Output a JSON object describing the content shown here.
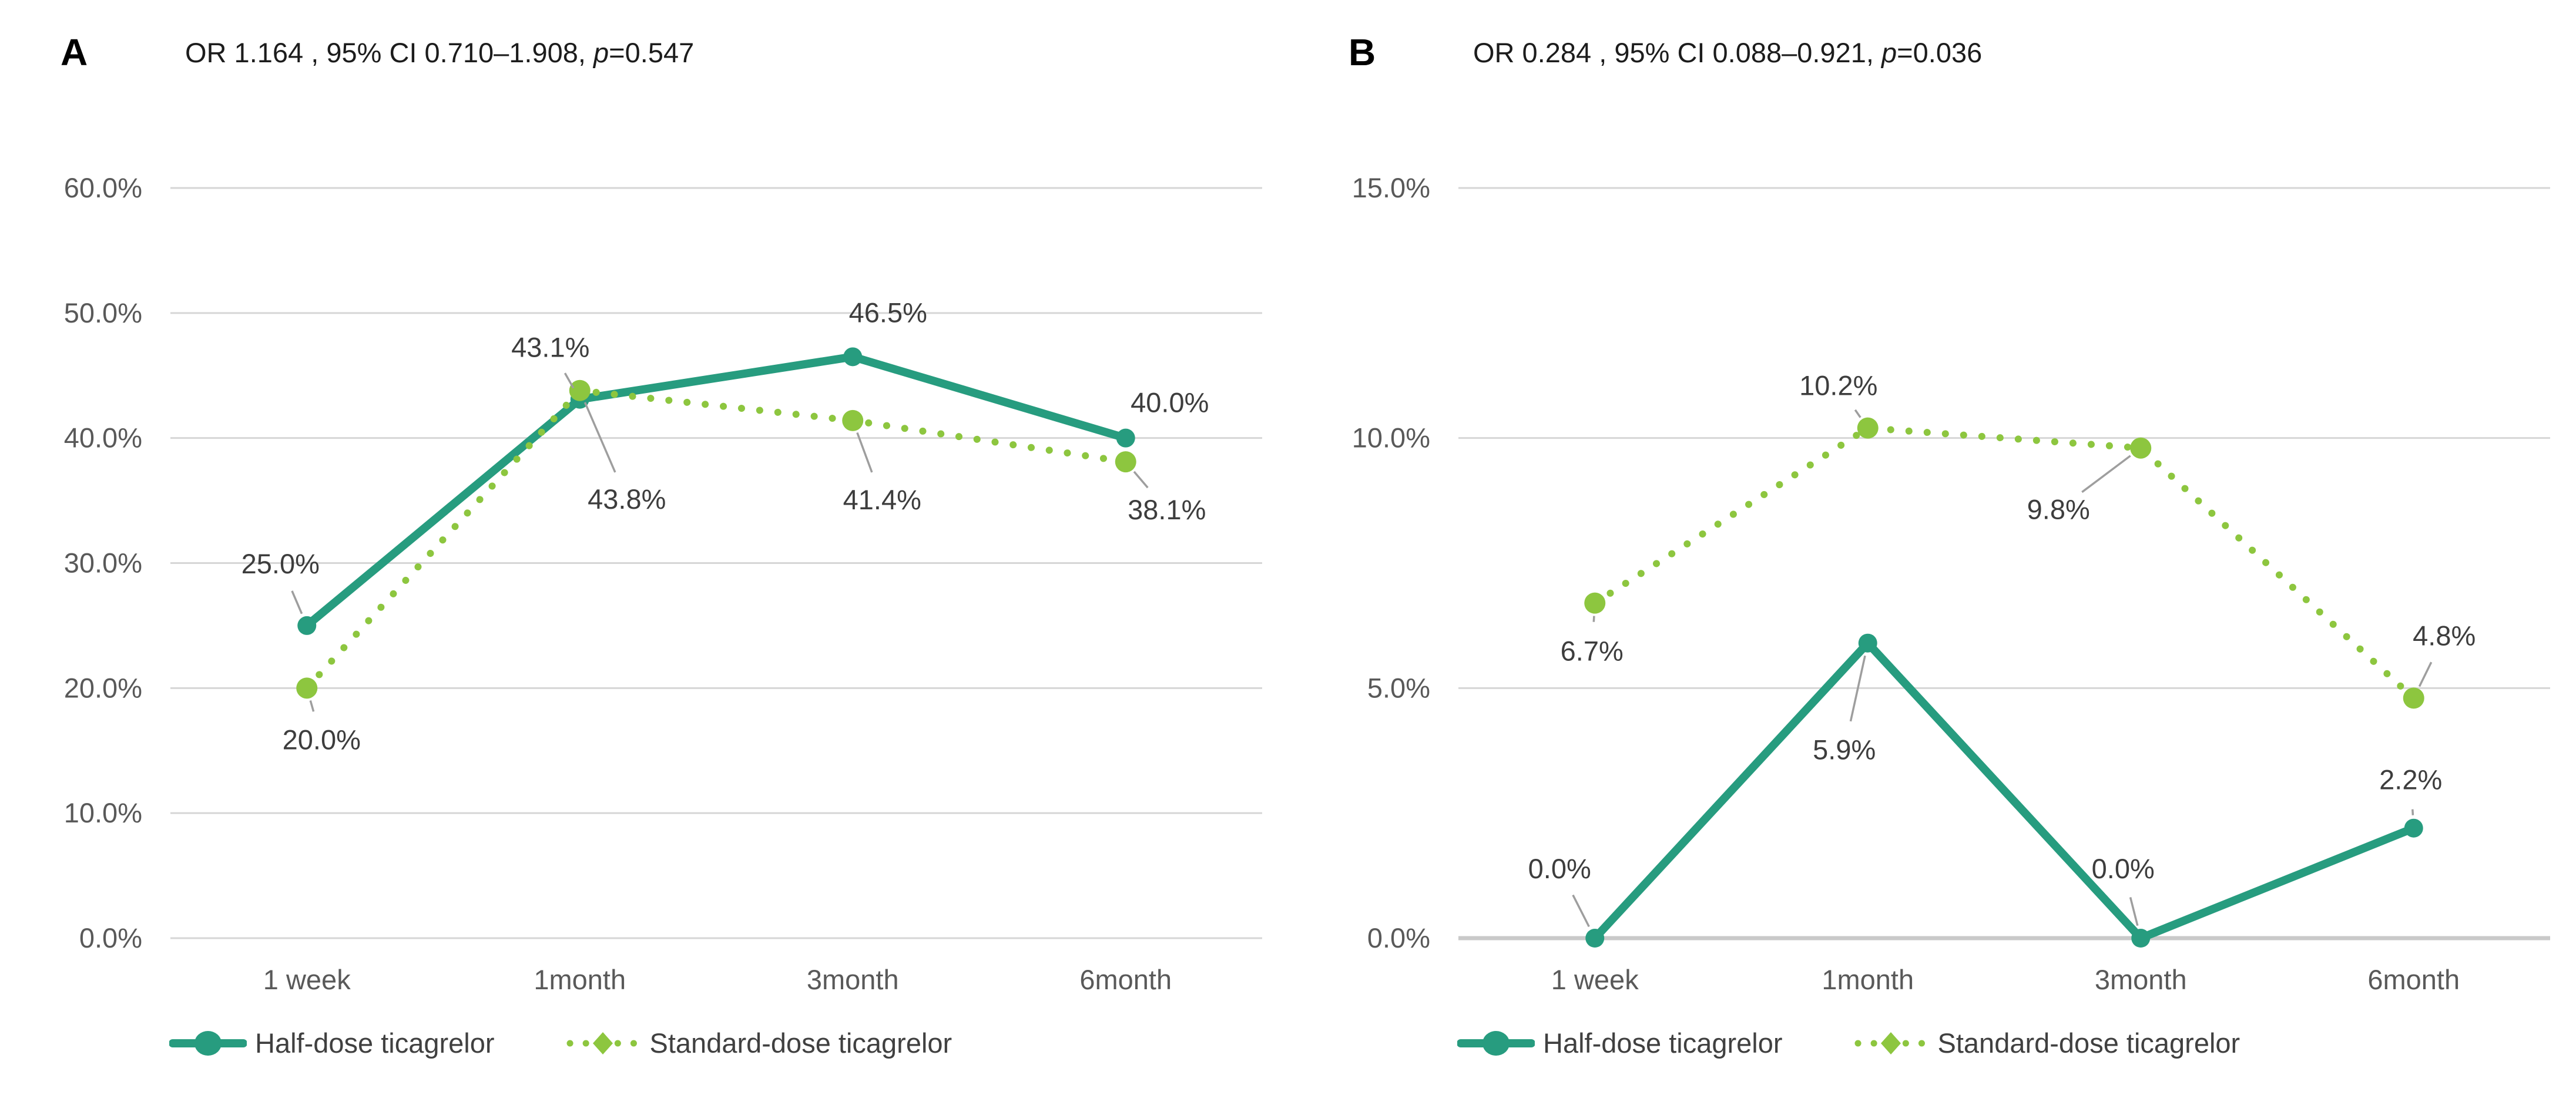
{
  "page": {
    "background": "#ffffff"
  },
  "colors": {
    "half_dose": "#279C7F",
    "standard_dose": "#8DC63F",
    "gridline": "#D6D6D6",
    "baseline": "#C9C9C9",
    "tick_label": "#595959",
    "data_label": "#3D3D3D",
    "leader_line": "#9E9E9E",
    "title_text": "#1C1C1C"
  },
  "chart_data": [
    {
      "type": "line",
      "panel_label": "A",
      "full_title": "OR 1.164 , 95% CI 0.710–1.908, p=0.547",
      "title_prefix": "OR 1.164 , 95% CI 0.710–1.908, ",
      "p_symbol": "p",
      "p_value": "=0.547",
      "categories": [
        "1 week",
        "1month",
        "3month",
        "6month"
      ],
      "ylim": [
        0,
        60
      ],
      "ytick_step": 10,
      "ytick_labels": [
        "0.0%",
        "10.0%",
        "20.0%",
        "30.0%",
        "40.0%",
        "50.0%",
        "60.0%"
      ],
      "grid": true,
      "legend_position": "bottom",
      "baseline_emphasis": false,
      "series": [
        {
          "name": "Half-dose ticagrelor",
          "color_key": "half_dose",
          "line_style": "solid",
          "values": [
            25.0,
            43.1,
            46.5,
            40.0
          ],
          "point_labels": [
            "25.0%",
            "43.1%",
            "46.5%",
            "40.0%"
          ],
          "label_offsets": [
            [
              -45,
              -105
            ],
            [
              -50,
              -88
            ],
            [
              60,
              -75
            ],
            [
              75,
              -60
            ]
          ],
          "label_leaders": [
            true,
            true,
            false,
            false
          ]
        },
        {
          "name": "Standard-dose ticagrelor",
          "color_key": "standard_dose",
          "line_style": "dotted",
          "values": [
            20.0,
            43.8,
            41.4,
            38.1
          ],
          "point_labels": [
            "20.0%",
            "43.8%",
            "41.4%",
            "38.1%"
          ],
          "label_offsets": [
            [
              25,
              88
            ],
            [
              80,
              185
            ],
            [
              50,
              135
            ],
            [
              70,
              82
            ]
          ],
          "label_leaders": [
            true,
            true,
            true,
            true
          ]
        }
      ]
    },
    {
      "type": "line",
      "panel_label": "B",
      "full_title": "OR 0.284 , 95% CI 0.088–0.921, p=0.036",
      "title_prefix": "OR 0.284 , 95% CI 0.088–0.921, ",
      "p_symbol": "p",
      "p_value": "=0.036",
      "categories": [
        "1 week",
        "1month",
        "3month",
        "6month"
      ],
      "ylim": [
        0,
        15
      ],
      "ytick_step": 5,
      "ytick_labels": [
        "0.0%",
        "5.0%",
        "10.0%",
        "15.0%"
      ],
      "grid": true,
      "legend_position": "bottom",
      "baseline_emphasis": true,
      "series": [
        {
          "name": "Half-dose ticagrelor",
          "color_key": "half_dose",
          "line_style": "solid",
          "values": [
            0.0,
            5.9,
            0.0,
            2.2
          ],
          "point_labels": [
            "0.0%",
            "5.9%",
            "0.0%",
            "2.2%"
          ],
          "label_offsets": [
            [
              -60,
              -118
            ],
            [
              -40,
              182
            ],
            [
              -30,
              -118
            ],
            [
              -5,
              -82
            ]
          ],
          "label_leaders": [
            true,
            true,
            true,
            true
          ]
        },
        {
          "name": "Standard-dose ticagrelor",
          "color_key": "standard_dose",
          "line_style": "dotted",
          "values": [
            6.7,
            10.2,
            9.8,
            4.8
          ],
          "point_labels": [
            "6.7%",
            "10.2%",
            "9.8%",
            "4.8%"
          ],
          "label_offsets": [
            [
              -5,
              82
            ],
            [
              -50,
              -72
            ],
            [
              -140,
              105
            ],
            [
              52,
              -106
            ]
          ],
          "label_leaders": [
            true,
            true,
            true,
            true
          ]
        }
      ]
    }
  ]
}
